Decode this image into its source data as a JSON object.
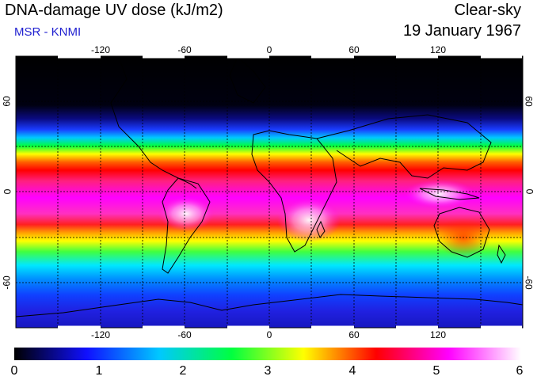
{
  "header": {
    "title": "DNA-damage UV dose (kJ/m2)",
    "subtitle": "MSR - KNMI",
    "condition": "Clear-sky",
    "date": "19 January 1967"
  },
  "map": {
    "lon_range": [
      -180,
      180
    ],
    "lat_range": [
      -90,
      90
    ],
    "grid_spacing_deg": 30,
    "lon_tick_labels": [
      "-120",
      "-60",
      "0",
      "60",
      "120"
    ],
    "lat_tick_labels": [
      "60",
      "0",
      "-60"
    ]
  },
  "colorbar": {
    "min": 0,
    "max": 6,
    "labels": [
      "0",
      "1",
      "2",
      "3",
      "4",
      "5",
      "6"
    ],
    "stops": [
      "#000000",
      "#1010ff",
      "#00c8ff",
      "#00ff40",
      "#ffff00",
      "#ff0000",
      "#ff00ff",
      "#ffffff"
    ]
  },
  "colors": {
    "subtitle": "#1f1fd0",
    "coastline": "#000000",
    "grid": "#000000"
  }
}
